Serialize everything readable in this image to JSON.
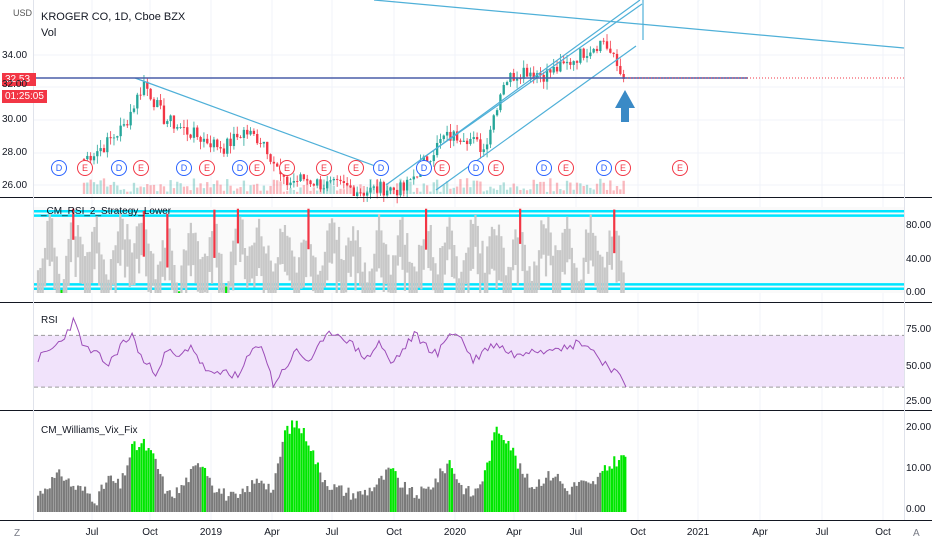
{
  "header": {
    "symbol_title": "KROGER CO, 1D, Cboe BZX",
    "volume_label": "Vol",
    "currency": "USD"
  },
  "price_badges": {
    "last_price": "32.53",
    "countdown": "01:25:05"
  },
  "colors": {
    "up": "#26a69a",
    "down": "#f23645",
    "trendline": "#4fb0d8",
    "rsi2_band": "#00e5ff",
    "rsi_line": "#9c4db8",
    "rsi_fill": "#f1e3fb",
    "vix_gray": "#7a7a7a",
    "vix_green": "#00e600",
    "signal_arrow": "#3a8ac6"
  },
  "panes": {
    "rsi2_title": "_CM_RSI_2_Strategy_Lower",
    "rsi_title": "RSI",
    "vix_title": "CM_Williams_Vix_Fix"
  },
  "earnings_markers": [
    "D",
    "E",
    "D",
    "E",
    "D",
    "E",
    "D",
    "E",
    "E",
    "E",
    "E",
    "D",
    "E",
    "D",
    "E",
    "D",
    "E",
    "D",
    "E",
    "E"
  ],
  "axis": {
    "x_ticks": [
      "Jul",
      "Oct",
      "2019",
      "Apr",
      "Jul",
      "Oct",
      "2020",
      "Apr",
      "Jul",
      "Oct",
      "2021",
      "Apr",
      "Jul",
      "Oct"
    ],
    "price_ticks": [
      "34.00",
      "32.00",
      "30.00",
      "28.00",
      "26.00"
    ],
    "rsi2_ticks": [
      "80.00",
      "40.00",
      "0.00"
    ],
    "rsi_ticks": [
      "75.00",
      "50.00",
      "25.00"
    ],
    "vix_ticks": [
      "20.00",
      "10.00",
      "0.00"
    ],
    "corner_left": "Z",
    "corner_right": "A"
  },
  "chart_data": [
    {
      "type": "candlestick",
      "title": "KROGER CO, 1D, Cboe BZX",
      "ylabel": "USD",
      "ylim": [
        25.5,
        36.5
      ],
      "x": [
        "2018-06",
        "2018-07",
        "2018-08",
        "2018-09",
        "2018-10",
        "2018-11",
        "2018-12",
        "2019-01",
        "2019-02",
        "2019-03",
        "2019-04",
        "2019-05",
        "2019-06",
        "2019-07",
        "2019-08",
        "2019-09",
        "2019-10",
        "2019-11",
        "2019-12",
        "2020-01",
        "2020-02",
        "2020-03",
        "2020-04",
        "2020-05",
        "2020-06",
        "2020-07",
        "2020-08",
        "2020-09"
      ],
      "close": [
        27.6,
        28.4,
        29.6,
        32.3,
        30.1,
        29.4,
        28.8,
        28.3,
        29.3,
        28.7,
        26.1,
        26.4,
        26.0,
        25.9,
        25.6,
        25.8,
        25.7,
        27.4,
        28.9,
        29.1,
        28.2,
        32.4,
        33.1,
        32.8,
        33.3,
        34.2,
        34.9,
        32.5
      ],
      "last_price": 32.53
    },
    {
      "type": "line",
      "title": "_CM_RSI_2_Strategy_Lower",
      "ylim": [
        0,
        100
      ],
      "upper_band": [
        95,
        90
      ],
      "lower_band": [
        10,
        5
      ],
      "series": [
        {
          "values": [
            22,
            88,
            15,
            90,
            35,
            82,
            10,
            93,
            48,
            85,
            20,
            78,
            12,
            92,
            30,
            87,
            8,
            95,
            40,
            80,
            18,
            91,
            25,
            86,
            14,
            89,
            44,
            76,
            9,
            94,
            33,
            83,
            17,
            90,
            28,
            85,
            11,
            92,
            38,
            81,
            21,
            88,
            6,
            93,
            46,
            79,
            13,
            90,
            31,
            86,
            5
          ]
        }
      ]
    },
    {
      "type": "line",
      "title": "RSI",
      "ylim": [
        20,
        85
      ],
      "bands": [
        70,
        30
      ],
      "series": [
        {
          "values": [
            52,
            58,
            66,
            81,
            60,
            55,
            47,
            62,
            70,
            49,
            42,
            58,
            52,
            63,
            46,
            38,
            43,
            37,
            55,
            64,
            32,
            45,
            58,
            50,
            62,
            73,
            69,
            60,
            52,
            65,
            48,
            58,
            71,
            62,
            55,
            73,
            68,
            50,
            59,
            64,
            57,
            54,
            61,
            58,
            63,
            59,
            66,
            60,
            50,
            43,
            30
          ]
        }
      ]
    },
    {
      "type": "bar",
      "title": "CM_Williams_Vix_Fix",
      "ylim": [
        0,
        22
      ],
      "series": [
        {
          "values": [
            4,
            7,
            9,
            6,
            5,
            3,
            8,
            6,
            15,
            16,
            12,
            4,
            5,
            9,
            12,
            6,
            4,
            3,
            6,
            8,
            5,
            19,
            21,
            17,
            9,
            6,
            5,
            4,
            5,
            7,
            10,
            6,
            4,
            5,
            8,
            12,
            6,
            4,
            9,
            20,
            17,
            10,
            6,
            8,
            9,
            5,
            7,
            6,
            9,
            12,
            13
          ]
        }
      ],
      "green_flags": [
        0,
        0,
        0,
        0,
        0,
        0,
        0,
        0,
        1,
        1,
        0,
        0,
        0,
        0,
        1,
        0,
        0,
        0,
        0,
        0,
        0,
        1,
        1,
        1,
        0,
        0,
        0,
        0,
        0,
        0,
        1,
        0,
        0,
        0,
        0,
        1,
        0,
        0,
        1,
        1,
        1,
        0,
        0,
        0,
        1,
        0,
        0,
        0,
        1,
        1,
        1
      ]
    }
  ]
}
